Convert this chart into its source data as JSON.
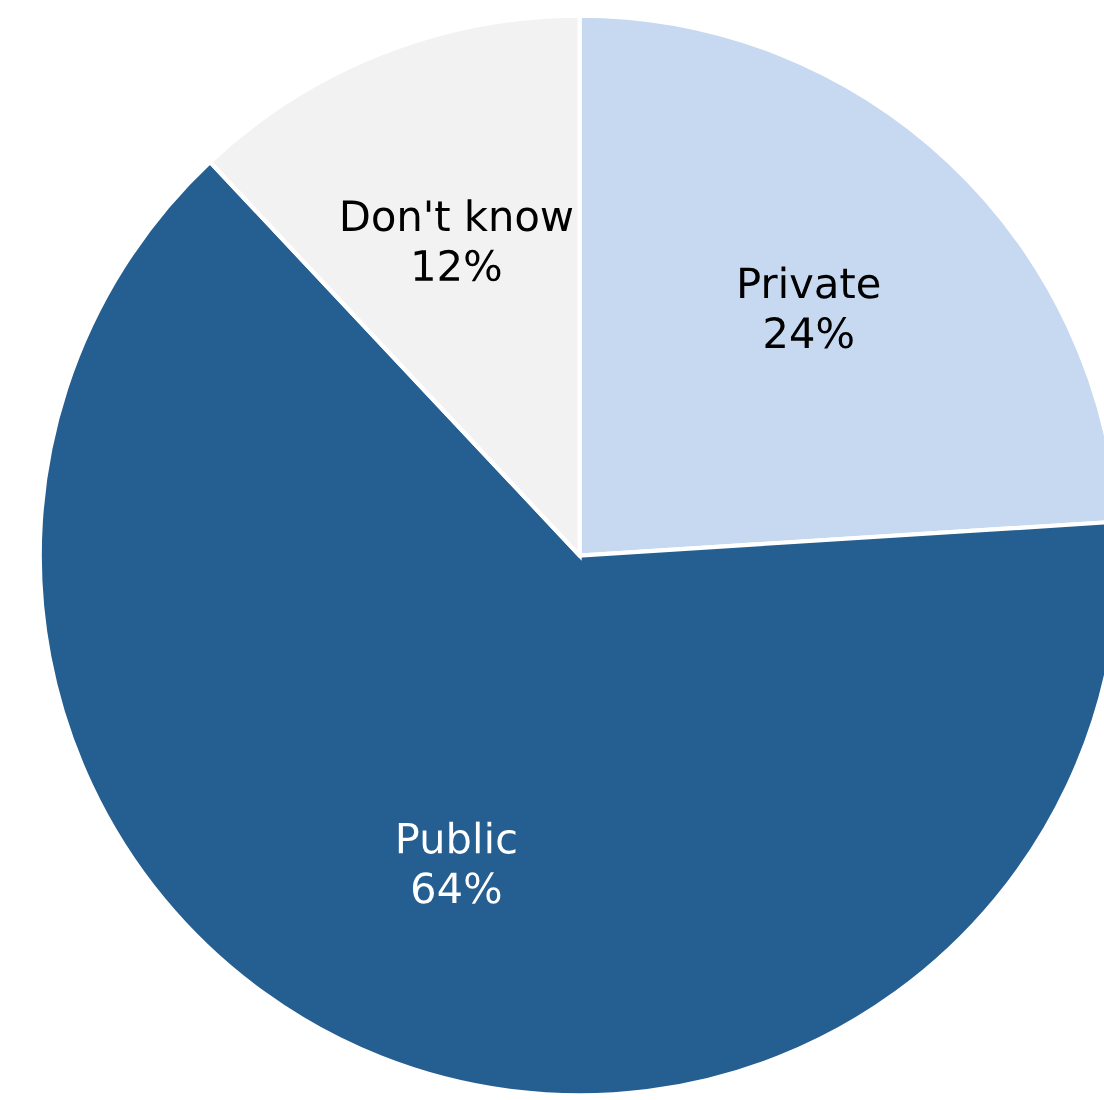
{
  "chart_data": {
    "type": "pie",
    "categories": [
      "Private",
      "Public",
      "Don't know"
    ],
    "values": [
      24,
      64,
      12
    ],
    "colors": [
      "#c6d9f1",
      "#255e91",
      "#f2f2f2"
    ],
    "value_labels": [
      "24%",
      "64%",
      "12%"
    ]
  }
}
